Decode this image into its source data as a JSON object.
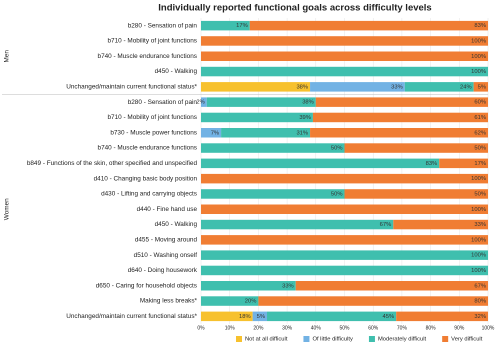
{
  "chart_data": {
    "type": "stacked-bar-horizontal",
    "title": "Individually reported functional goals across difficulty levels",
    "groups": [
      {
        "name": "Men",
        "categories": [
          "b280 - Sensation of pain",
          "b710 - Mobility of joint functions",
          "b740 - Muscle endurance functions",
          "d450 - Walking",
          "Unchanged/maintain current functional status*"
        ]
      },
      {
        "name": "Women",
        "categories": [
          "b280 - Sensation of pain",
          "b710 - Mobility of joint functions",
          "b730 - Muscle power functions",
          "b740 - Muscle endurance functions",
          "b849 - Functions of the skin, other specified and unspecified",
          "d410 - Changing basic body position",
          "d430 - Lifting and carrying objects",
          "d440 - Fine hand use",
          "d450 - Walking",
          "d455 - Moving around",
          "d510 - Washing onself",
          "d640 - Doing housework",
          "d650 -  Caring for household objects",
          "Making less breaks*",
          "Unchanged/maintain current functional status*"
        ]
      }
    ],
    "series": [
      {
        "name": "Not at all difficult",
        "color": "#f7c12e",
        "values": [
          null,
          null,
          null,
          null,
          38,
          null,
          null,
          null,
          null,
          null,
          null,
          null,
          null,
          null,
          null,
          null,
          null,
          null,
          null,
          18
        ],
        "value_labels": [
          null,
          null,
          null,
          null,
          "38%",
          null,
          null,
          null,
          null,
          null,
          null,
          null,
          null,
          null,
          null,
          null,
          null,
          null,
          null,
          "18%"
        ]
      },
      {
        "name": "Of little difficulty",
        "color": "#72b2e4",
        "values": [
          null,
          null,
          null,
          null,
          33,
          2,
          null,
          7,
          null,
          null,
          null,
          null,
          null,
          null,
          null,
          null,
          null,
          null,
          null,
          5
        ],
        "value_labels": [
          null,
          null,
          null,
          null,
          "33%",
          "2%",
          null,
          "7%",
          null,
          null,
          null,
          null,
          null,
          null,
          null,
          null,
          null,
          null,
          null,
          "5%"
        ]
      },
      {
        "name": "Moderately difficult",
        "color": "#3fbfae",
        "values": [
          17,
          null,
          null,
          100,
          24,
          38,
          39,
          31,
          50,
          83,
          null,
          50,
          null,
          67,
          null,
          100,
          100,
          33,
          20,
          45
        ],
        "value_labels": [
          "17%",
          null,
          null,
          "100%",
          "24%",
          "38%",
          "39%",
          "31%",
          "50%",
          "83%",
          null,
          "50%",
          null,
          "67%",
          null,
          "100%",
          "100%",
          "33%",
          "20%",
          "45%"
        ]
      },
      {
        "name": "Very difficult",
        "color": "#f07d33",
        "values": [
          83,
          100,
          100,
          null,
          5,
          60,
          61,
          62,
          50,
          17,
          100,
          50,
          100,
          33,
          100,
          null,
          null,
          67,
          80,
          32
        ],
        "value_labels": [
          "83%",
          "100%",
          "100%",
          null,
          "5%",
          "60%",
          "61%",
          "62%",
          "50%",
          "17%",
          "100%",
          "50%",
          "100%",
          "33%",
          "100%",
          null,
          null,
          "67%",
          "80%",
          "32%"
        ]
      }
    ],
    "xlim": [
      0,
      100
    ],
    "xticks": [
      {
        "value": 0,
        "label": "0%"
      },
      {
        "value": 10,
        "label": "10%"
      },
      {
        "value": 20,
        "label": "20%"
      },
      {
        "value": 30,
        "label": "30%"
      },
      {
        "value": 40,
        "label": "40%"
      },
      {
        "value": 50,
        "label": "50%"
      },
      {
        "value": 60,
        "label": "60%"
      },
      {
        "value": 70,
        "label": "70%"
      },
      {
        "value": 80,
        "label": "80%"
      },
      {
        "value": 90,
        "label": "90%"
      },
      {
        "value": 100,
        "label": "100%"
      }
    ],
    "legend": "bottom"
  }
}
